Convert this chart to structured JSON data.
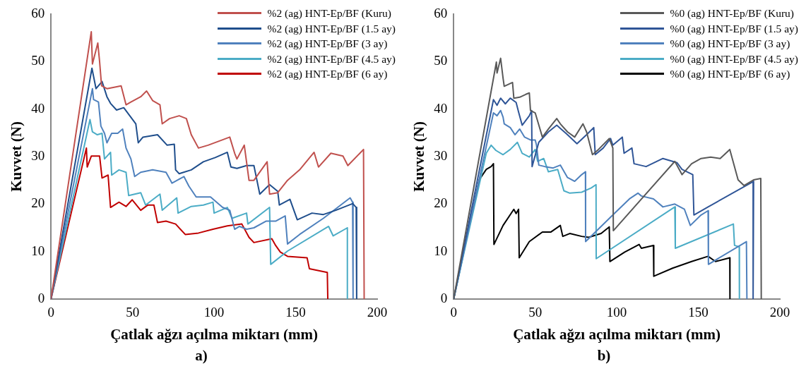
{
  "chart_data": [
    {
      "type": "line",
      "xlabel": "Çatlak ağzı açılma miktarı (mm)",
      "ylabel": "Kuvvet (N)",
      "annotations": [
        "a)"
      ],
      "xlim": [
        0,
        200
      ],
      "xticks": [
        0,
        50,
        100,
        150,
        200
      ],
      "ylim": [
        0,
        60
      ],
      "yticks": [
        0,
        10,
        20,
        30,
        40,
        50,
        60
      ],
      "legend": "top right",
      "marker": "none",
      "series": [
        {
          "name": "%2 (ag) HNT-Ep/BF (Kuru)",
          "color": "#c0504d",
          "x": [
            0,
            24.7,
            25.4,
            28.7,
            29.8,
            31,
            34.3,
            38.7,
            43,
            46,
            49,
            55,
            58.6,
            62.3,
            66.8,
            68.2,
            72.7,
            78.6,
            83,
            86,
            90.4,
            96.3,
            105,
            109.6,
            112.6,
            114,
            118.5,
            121.4,
            124.4,
            132.5,
            134,
            139,
            145,
            152.4,
            161.3,
            164,
            171.6,
            179,
            182,
            191.6,
            192
          ],
          "values": [
            0,
            56.3,
            49.5,
            53.9,
            50,
            44.9,
            44.3,
            44.6,
            44.9,
            40.9,
            41.5,
            42.6,
            43.8,
            41.8,
            40.9,
            36.9,
            38,
            38.6,
            38,
            34.6,
            31.8,
            32.4,
            33.5,
            34.1,
            30.7,
            29.5,
            32.4,
            25,
            25,
            28.9,
            22.1,
            22.4,
            25,
            27.2,
            30.9,
            27.8,
            30.7,
            30.1,
            28.1,
            31.5,
            0
          ]
        },
        {
          "name": "%2 (ag) HNT-Ep/BF (1.5 ay)",
          "color": "#1f4e8c",
          "x": [
            0,
            25.1,
            27.6,
            31.3,
            34.3,
            36.5,
            40.2,
            44.6,
            48.3,
            52,
            53.5,
            56.4,
            65.3,
            71.2,
            75.6,
            76.4,
            78.6,
            86,
            93.4,
            100.7,
            108.1,
            110.3,
            114,
            119.9,
            124.4,
            128,
            134,
            139,
            140,
            146.5,
            151,
            160,
            167,
            174.6,
            185,
            187.1,
            187.4
          ],
          "values": [
            0,
            48.6,
            44.3,
            45.8,
            42.6,
            41.2,
            39.8,
            40.3,
            38.6,
            36.9,
            32.9,
            34.1,
            34.6,
            32.4,
            32.6,
            27.2,
            26.4,
            27.2,
            28.9,
            29.8,
            30.9,
            27.8,
            27.5,
            28.1,
            28.1,
            22.1,
            24.1,
            22.7,
            19.8,
            21,
            16.7,
            18.1,
            17.8,
            18.7,
            20.1,
            19.3,
            0
          ]
        },
        {
          "name": "%2 (ag) HNT-Ep/BF (3 ay)",
          "color": "#4f81bd",
          "x": [
            0,
            25.4,
            26.1,
            29.1,
            30.6,
            32.8,
            34.3,
            37.2,
            40.9,
            43.9,
            46,
            49,
            51.3,
            55,
            62.3,
            70.5,
            74.2,
            81.5,
            84.5,
            89,
            97.8,
            105.2,
            109.6,
            112.6,
            115.6,
            119.9,
            124.4,
            131.8,
            137.7,
            143.6,
            145,
            152.4,
            167,
            183.4,
            184.9,
            185.2
          ],
          "values": [
            0,
            44.3,
            42,
            41.5,
            36.4,
            34.9,
            32.9,
            34.9,
            34.9,
            35.8,
            31.8,
            29.5,
            25.8,
            26.7,
            27.2,
            26.7,
            24.4,
            25.8,
            23.8,
            21.5,
            21.5,
            19.3,
            18.7,
            14.7,
            15.3,
            14.7,
            15,
            16.4,
            16.4,
            17.5,
            11.6,
            13.6,
            17,
            21.3,
            20.4,
            0
          ]
        },
        {
          "name": "%2 (ag) HNT-Ep/BF (4.5 ay)",
          "color": "#4bacc6",
          "x": [
            0,
            23.9,
            25.4,
            28.4,
            31.3,
            32.8,
            36.5,
            37.2,
            41.7,
            46,
            47.6,
            55,
            58,
            66.8,
            68.2,
            77.1,
            77.9,
            86,
            93.4,
            99.3,
            100,
            108.1,
            111,
            119.9,
            120.7,
            134,
            134.7,
            145,
            170.2,
            173,
            181.7,
            181.7
          ],
          "values": [
            0,
            37.8,
            35.2,
            34.6,
            34.9,
            29.5,
            30.9,
            26.1,
            27.2,
            26.7,
            21.8,
            22.4,
            19.8,
            22.1,
            18.7,
            21.3,
            18.1,
            19.5,
            19.8,
            20.4,
            18.1,
            19.3,
            17,
            18.1,
            15.8,
            19.3,
            7.3,
            10.1,
            15.3,
            13.3,
            15,
            0
          ]
        },
        {
          "name": "%2 (ag) HNT-Ep/BF (6 ay)",
          "color": "#c00000",
          "x": [
            0,
            21.7,
            22.2,
            24.7,
            29.8,
            31.3,
            35,
            36.5,
            41.7,
            46,
            49.8,
            55,
            59.4,
            63.1,
            65.3,
            70.5,
            76.4,
            82.3,
            90.4,
            99.3,
            108.1,
            117,
            121.4,
            124.4,
            135.4,
            137.7,
            140.6,
            145,
            157,
            158.4,
            169.4,
            169.7
          ],
          "values": [
            0,
            31.8,
            27.8,
            30.1,
            30.1,
            25.5,
            26.1,
            19.3,
            20.4,
            19.5,
            20.9,
            18.7,
            19.8,
            19.8,
            16.1,
            16.4,
            15.8,
            13.6,
            13.9,
            14.7,
            15.4,
            15.8,
            13,
            11.9,
            12.7,
            11.3,
            9.9,
            9,
            8.7,
            6.4,
            5.6,
            0
          ]
        }
      ]
    },
    {
      "type": "line",
      "xlabel": "Çatlak ağzı açılma miktarı (mm)",
      "ylabel": "Kuvvet (N)",
      "annotations": [
        "b)"
      ],
      "xlim": [
        0,
        200
      ],
      "xticks": [
        0,
        50,
        100,
        150,
        200
      ],
      "ylim": [
        0,
        60
      ],
      "yticks": [
        0,
        10,
        20,
        30,
        40,
        50,
        60
      ],
      "legend": "top right",
      "marker": "none",
      "series": [
        {
          "name": "%0 (ag) HNT-Ep/BF (Kuru)",
          "color": "#595959",
          "x": [
            0,
            26.2,
            26.6,
            28.8,
            30.3,
            31,
            36.1,
            36.9,
            40.5,
            44.2,
            46.4,
            47.1,
            50,
            54.4,
            58.1,
            63.2,
            65.4,
            69.8,
            74.2,
            79.3,
            81.5,
            85.1,
            88.8,
            95.4,
            97.6,
            97.9,
            135.6,
            140,
            145.9,
            151.7,
            157.6,
            163.4,
            169.3,
            174.4,
            178,
            183.9,
            188.3,
            188.6
          ],
          "values": [
            0,
            49.9,
            47.6,
            50.7,
            46.5,
            44.8,
            45.6,
            42.3,
            42.5,
            43.1,
            43.4,
            39.7,
            39.2,
            34.1,
            35.8,
            38,
            36.9,
            35.2,
            34.1,
            36.9,
            35.2,
            30.4,
            31.5,
            33.8,
            31.8,
            14.4,
            29,
            26.2,
            28.5,
            29.6,
            29.9,
            29.6,
            31.5,
            25.1,
            23.9,
            25.1,
            25.4,
            0
          ]
        },
        {
          "name": "%0 (ag) HNT-Ep/BF (1.5 ay)",
          "color": "#2f5597",
          "x": [
            0,
            24.4,
            26.6,
            28.8,
            31.7,
            34.7,
            38.3,
            39.8,
            42,
            46.4,
            47.8,
            48.1,
            52.2,
            58.1,
            63.2,
            69.8,
            75.6,
            81.5,
            85.9,
            86.8,
            91.7,
            96.2,
            97.6,
            103.4,
            104.5,
            109.3,
            110.6,
            118,
            128.3,
            134.2,
            137,
            140,
            146.6,
            147.3,
            156,
            183.9,
            183.6
          ],
          "values": [
            0,
            42,
            40.8,
            42.3,
            41.1,
            42.3,
            41.4,
            39.4,
            36.6,
            38.6,
            39.7,
            27.9,
            33,
            35.2,
            36.6,
            34.6,
            32.7,
            34.6,
            36.1,
            30.4,
            31.8,
            33.8,
            32.4,
            34.1,
            30.7,
            31.8,
            28.5,
            27.9,
            29.6,
            29,
            28.7,
            27.3,
            26.2,
            17.7,
            19.4,
            24.8,
            0
          ]
        },
        {
          "name": "%0 (ag) HNT-Ep/BF (3 ay)",
          "color": "#4f81bd",
          "x": [
            0,
            24.4,
            26.6,
            28.8,
            30.3,
            31,
            34.7,
            37.6,
            40.5,
            43.5,
            47.1,
            50,
            50.8,
            52.2,
            55.9,
            61,
            65.4,
            69.8,
            74.2,
            78.5,
            80.8,
            80.9,
            97.6,
            107.8,
            113,
            115.1,
            122.5,
            128.3,
            135.6,
            141.5,
            145.1,
            151.7,
            156,
            156.2,
            179.5,
            179.8
          ],
          "values": [
            0,
            39.2,
            38.6,
            39.7,
            38.3,
            36.9,
            36.1,
            34.6,
            35.8,
            34.1,
            33.5,
            33.5,
            32.4,
            28.2,
            27.9,
            27.6,
            28.2,
            25.6,
            24.8,
            26.2,
            26.8,
            12.1,
            17.7,
            21.1,
            22.3,
            21.7,
            21.1,
            19.4,
            20,
            18.9,
            15.5,
            17.7,
            18.6,
            7.3,
            12.1,
            0
          ]
        },
        {
          "name": "%0 (ag) HNT-Ep/BF (4.5 ay)",
          "color": "#4bacc6",
          "x": [
            0,
            20,
            23,
            25.9,
            30.3,
            34.7,
            39.1,
            42,
            46.4,
            50,
            51.5,
            55.2,
            58.1,
            63.8,
            67.6,
            71.2,
            78.5,
            84.4,
            87.3,
            87.4,
            135.6,
            135.9,
            171.5,
            172.2,
            175.1,
            175.2
          ],
          "values": [
            0,
            30.7,
            32.4,
            31.3,
            30.4,
            31.5,
            33,
            30.7,
            29.9,
            31.5,
            29,
            29.6,
            26.8,
            27.3,
            22.8,
            22.3,
            22.5,
            23.4,
            24.1,
            8.5,
            19.4,
            10.7,
            15.8,
            11.3,
            11,
            0
          ]
        },
        {
          "name": "%0 (ag) HNT-Ep/BF (6 ay)",
          "color": "#000000",
          "x": [
            0,
            15.7,
            20,
            23,
            24.4,
            24.7,
            30.3,
            36.9,
            38.3,
            39.8,
            40.2,
            46.4,
            54.4,
            59.5,
            65.4,
            66.9,
            71.2,
            78.5,
            82.8,
            90.4,
            95.4,
            95.8,
            104.9,
            113.7,
            115.1,
            122.5,
            122.7,
            134.2,
            145.9,
            156,
            160.5,
            169.3,
            169.4
          ],
          "values": [
            0,
            25.1,
            27.3,
            27.9,
            28.5,
            11.5,
            15.5,
            18.9,
            18,
            18.9,
            8.7,
            12.1,
            14.1,
            14.1,
            15.5,
            13.2,
            13.8,
            13.2,
            13,
            13.8,
            15.2,
            7.9,
            9.9,
            11.5,
            10.7,
            11.3,
            4.8,
            6.5,
            7.9,
            9,
            7.9,
            8.7,
            0
          ]
        }
      ]
    }
  ]
}
